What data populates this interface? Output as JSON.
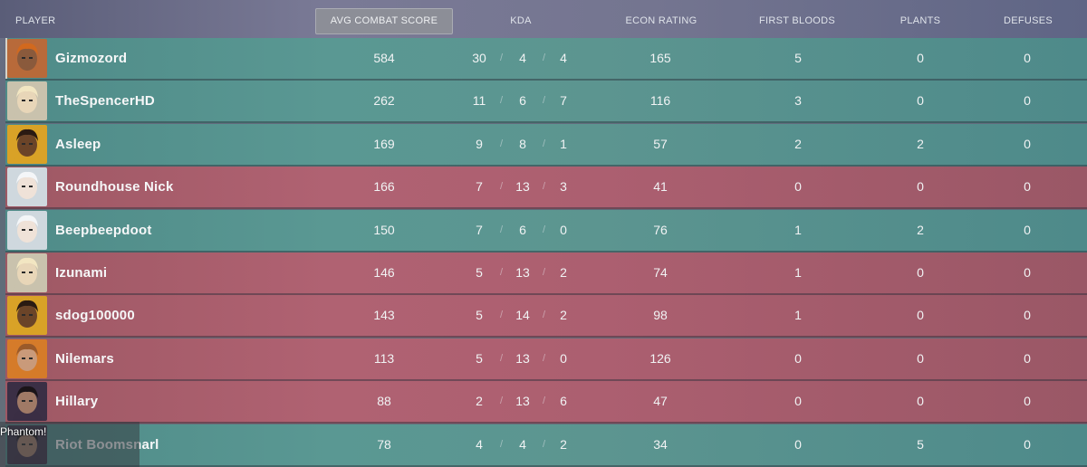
{
  "header": {
    "player": "PLAYER",
    "acs": "AVG COMBAT SCORE",
    "kda": "KDA",
    "econ": "ECON RATING",
    "first_bloods": "FIRST BLOODS",
    "plants": "PLANTS",
    "defuses": "DEFUSES"
  },
  "kda_separator": "/",
  "players": [
    {
      "name": "Gizmozord",
      "acs": "584",
      "k": "30",
      "d": "4",
      "a": "4",
      "econ": "165",
      "fb": "5",
      "plants": "0",
      "defuses": "0",
      "team": "green",
      "avatar": "raze-avatar-icon"
    },
    {
      "name": "TheSpencerHD",
      "acs": "262",
      "k": "11",
      "d": "6",
      "a": "7",
      "econ": "116",
      "fb": "3",
      "plants": "0",
      "defuses": "0",
      "team": "green",
      "avatar": "sova-avatar-icon"
    },
    {
      "name": "Asleep",
      "acs": "169",
      "k": "9",
      "d": "8",
      "a": "1",
      "econ": "57",
      "fb": "2",
      "plants": "2",
      "defuses": "0",
      "team": "green",
      "avatar": "phoenix-avatar-icon"
    },
    {
      "name": "Roundhouse Nick",
      "acs": "166",
      "k": "7",
      "d": "13",
      "a": "3",
      "econ": "41",
      "fb": "0",
      "plants": "0",
      "defuses": "0",
      "team": "red",
      "avatar": "jett-avatar-icon"
    },
    {
      "name": "Beepbeepdoot",
      "acs": "150",
      "k": "7",
      "d": "6",
      "a": "0",
      "econ": "76",
      "fb": "1",
      "plants": "2",
      "defuses": "0",
      "team": "green",
      "avatar": "jett-avatar-icon"
    },
    {
      "name": "Izunami",
      "acs": "146",
      "k": "5",
      "d": "13",
      "a": "2",
      "econ": "74",
      "fb": "1",
      "plants": "0",
      "defuses": "0",
      "team": "red",
      "avatar": "sova-avatar-icon"
    },
    {
      "name": "sdog100000",
      "acs": "143",
      "k": "5",
      "d": "14",
      "a": "2",
      "econ": "98",
      "fb": "1",
      "plants": "0",
      "defuses": "0",
      "team": "red",
      "avatar": "phoenix-avatar-icon"
    },
    {
      "name": "Nilemars",
      "acs": "113",
      "k": "5",
      "d": "13",
      "a": "0",
      "econ": "126",
      "fb": "0",
      "plants": "0",
      "defuses": "0",
      "team": "red",
      "avatar": "brimstone-avatar-icon"
    },
    {
      "name": "Hillary",
      "acs": "88",
      "k": "2",
      "d": "13",
      "a": "6",
      "econ": "47",
      "fb": "0",
      "plants": "0",
      "defuses": "0",
      "team": "red",
      "avatar": "reyna-avatar-icon"
    },
    {
      "name": "Riot Boomsnarl",
      "acs": "78",
      "k": "4",
      "d": "4",
      "a": "2",
      "econ": "34",
      "fb": "0",
      "plants": "5",
      "defuses": "0",
      "team": "green",
      "avatar": "reyna-avatar-icon"
    }
  ],
  "tooltip": "Phantom!",
  "colors": {
    "team_green": "#5a9893",
    "team_red": "#b06272",
    "header_sorted": "#8c8e97"
  }
}
